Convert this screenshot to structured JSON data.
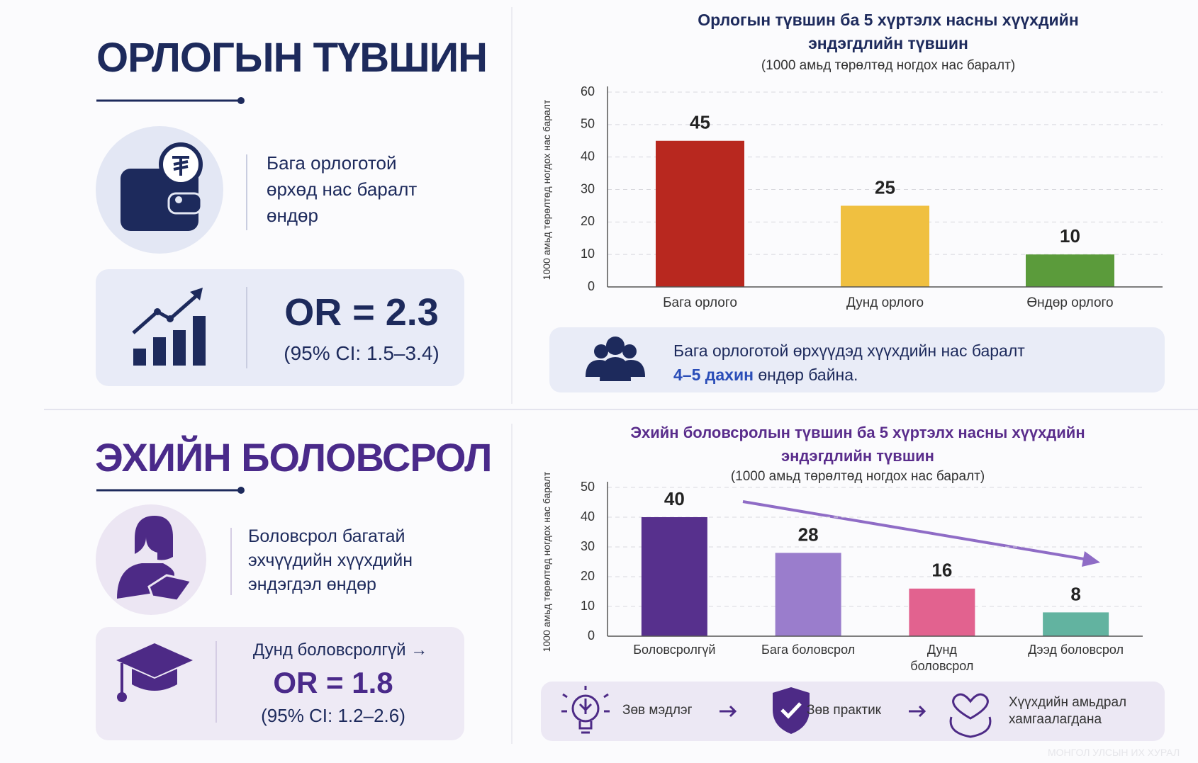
{
  "income_panel": {
    "heading": "ОРЛОГЫН ТҮВШИН",
    "description": "Бага орлоготой өрхөд нас баралт өндөр",
    "odds_ratio": "OR = 2.3",
    "ci": "(95% CI: 1.5–3.4)"
  },
  "education_panel": {
    "heading": "ЭХИЙН БОЛОВСРОЛ",
    "description": "Боловсрол багатай эхчүүдийн хүүхдийн эндэгдэл өндөр",
    "note": "Дунд боловсролгүй →",
    "odds_ratio": "OR = 1.8",
    "ci": "(95% CI: 1.2–2.6)"
  },
  "income_note": {
    "text_start": "Бага орлоготой өрхүүдэд хүүхдийн нас баралт",
    "highlight": "4–5 дахин",
    "text_end": "өндөр байна."
  },
  "education_flow": [
    "Зөв мэдлэг",
    "Зөв практик",
    "Хүүхдийн амьдрал хамгаалагдана"
  ],
  "watermark": "МОНГОЛ УЛСЫН ИХ ХУРАЛ",
  "chart_data": [
    {
      "type": "bar",
      "title": "Орлогын түвшин ба 5 хүртэлх насны хүүхдийн эндэгдлийн түвшин",
      "subtitle": "(1000 амьд төрөлтөд ногдох нас баралт)",
      "y_label": "1000 амьд төрөлтөд ногдох нас баралт",
      "categories": [
        "Бага орлого",
        "Дунд орлого",
        "Өндөр орлого"
      ],
      "values": [
        45,
        25,
        10
      ],
      "colors": [
        "#b8281f",
        "#f0c040",
        "#5b9b3b"
      ],
      "ylim": [
        0,
        60
      ],
      "yticks": [
        0,
        10,
        20,
        30,
        40,
        50,
        60
      ],
      "grid": true,
      "title_color": "#1d2a5c"
    },
    {
      "type": "bar",
      "title": "Эхийн боловсролын түвшин ба 5 хүртэлх насны хүүхдийн эндэгдлийн түвшин",
      "subtitle": "(1000 амьд төрөлтөд ногдох нас баралт)",
      "y_label": "1000 амьд төрөлтөд ногдох нас баралт",
      "categories": [
        "Боловсролгүй",
        "Бага боловсрол",
        "Дунд боловсрол",
        "Дээд боловсрол"
      ],
      "values": [
        40,
        28,
        16,
        8
      ],
      "colors": [
        "#57308d",
        "#9a7dcc",
        "#e2628f",
        "#62b3a0"
      ],
      "ylim": [
        0,
        50
      ],
      "yticks": [
        0,
        10,
        20,
        30,
        40,
        50
      ],
      "grid": true,
      "title_color": "#5a2d8c"
    }
  ]
}
